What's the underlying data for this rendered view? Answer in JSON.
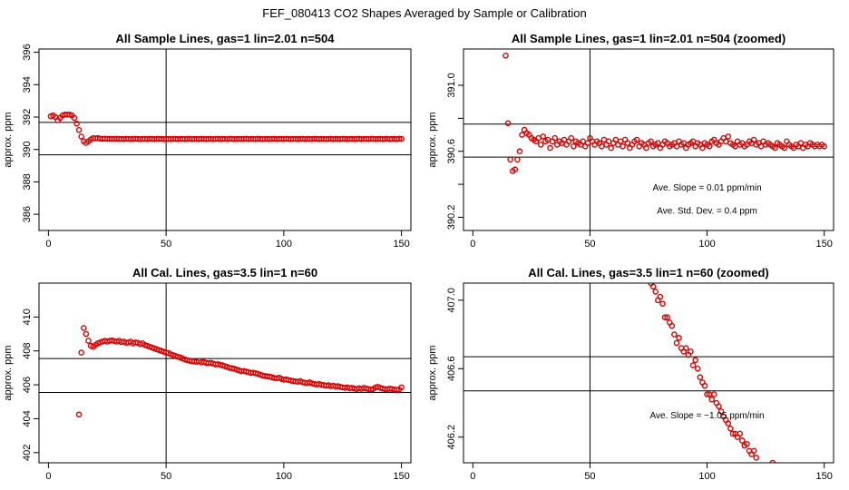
{
  "main_title": "FEF_080413  CO2 Shapes Averaged by Sample or Calibration",
  "colors": {
    "points": "#dd0000",
    "frame": "#000000",
    "lines": "#000000"
  },
  "chart_data": [
    {
      "type": "scatter",
      "title": "All Sample Lines, gas=1 lin=2.01 n=504",
      "xlabel": "",
      "ylabel": "approx. ppm",
      "xlim": [
        -4,
        154
      ],
      "ylim": [
        385,
        396.2
      ],
      "x_ticks": [
        0,
        50,
        100,
        150
      ],
      "x_tick_labels": [
        "0",
        "50",
        "100",
        "150"
      ],
      "y_ticks": [
        386,
        388,
        390,
        392,
        394,
        396
      ],
      "y_tick_labels": [
        "386",
        "388",
        "390",
        "392",
        "394",
        "396"
      ],
      "vline": 50,
      "hlines": [
        391.67,
        389.67
      ],
      "annotations": [],
      "x": [
        1,
        2,
        3,
        4,
        5,
        6,
        7,
        8,
        9,
        10,
        11,
        12,
        13,
        14,
        15,
        16,
        17,
        18,
        19,
        20,
        21,
        22,
        23,
        24,
        25,
        26,
        27,
        28,
        29,
        30,
        31,
        32,
        33,
        34,
        35,
        36,
        37,
        38,
        39,
        40,
        41,
        42,
        43,
        44,
        45,
        46,
        47,
        48,
        49,
        50,
        51,
        52,
        53,
        54,
        55,
        56,
        57,
        58,
        59,
        60,
        61,
        62,
        63,
        64,
        65,
        66,
        67,
        68,
        69,
        70,
        71,
        72,
        73,
        74,
        75,
        76,
        77,
        78,
        79,
        80,
        81,
        82,
        83,
        84,
        85,
        86,
        87,
        88,
        89,
        90,
        91,
        92,
        93,
        94,
        95,
        96,
        97,
        98,
        99,
        100,
        101,
        102,
        103,
        104,
        105,
        106,
        107,
        108,
        109,
        110,
        111,
        112,
        113,
        114,
        115,
        116,
        117,
        118,
        119,
        120,
        121,
        122,
        123,
        124,
        125,
        126,
        127,
        128,
        129,
        130,
        131,
        132,
        133,
        134,
        135,
        136,
        137,
        138,
        139,
        140,
        141,
        142,
        143,
        144,
        145,
        146,
        147,
        148,
        149,
        150
      ],
      "y": [
        392.05,
        392.1,
        392.0,
        391.8,
        391.95,
        392.1,
        392.15,
        392.15,
        392.15,
        392.1,
        391.95,
        391.6,
        391.2,
        390.8,
        390.5,
        390.4,
        390.5,
        390.62,
        390.7,
        390.68,
        390.7,
        390.67,
        390.66,
        390.67,
        390.65,
        390.66,
        390.65,
        390.65,
        390.66,
        390.65,
        390.65,
        390.64,
        390.66,
        390.65,
        390.64,
        390.65,
        390.66,
        390.65,
        390.64,
        390.65,
        390.65,
        390.64,
        390.66,
        390.65,
        390.64,
        390.66,
        390.65,
        390.65,
        390.64,
        390.65,
        390.65,
        390.64,
        390.66,
        390.65,
        390.64,
        390.65,
        390.65,
        390.64,
        390.65,
        390.66,
        390.64,
        390.65,
        390.65,
        390.64,
        390.66,
        390.65,
        390.64,
        390.65,
        390.65,
        390.64,
        390.65,
        390.66,
        390.64,
        390.65,
        390.65,
        390.64,
        390.66,
        390.65,
        390.64,
        390.65,
        390.65,
        390.64,
        390.65,
        390.66,
        390.64,
        390.65,
        390.65,
        390.64,
        390.66,
        390.65,
        390.64,
        390.65,
        390.65,
        390.64,
        390.65,
        390.66,
        390.64,
        390.65,
        390.65,
        390.64,
        390.66,
        390.65,
        390.64,
        390.65,
        390.65,
        390.64,
        390.65,
        390.66,
        390.64,
        390.65,
        390.65,
        390.64,
        390.66,
        390.65,
        390.64,
        390.65,
        390.65,
        390.64,
        390.65,
        390.66,
        390.64,
        390.65,
        390.65,
        390.64,
        390.66,
        390.65,
        390.64,
        390.65,
        390.65,
        390.64,
        390.65,
        390.66,
        390.64,
        390.65,
        390.65,
        390.64,
        390.66,
        390.65,
        390.64,
        390.65,
        390.65,
        390.64,
        390.65,
        390.66,
        390.64,
        390.65,
        390.65,
        390.64,
        390.66,
        390.65
      ]
    },
    {
      "type": "scatter",
      "title": "All Sample Lines, gas=1 lin=2.01 n=504 (zoomed)",
      "xlabel": "",
      "ylabel": "approx. ppm",
      "xlim": [
        -4,
        154
      ],
      "ylim": [
        390.12,
        391.22
      ],
      "x_ticks": [
        0,
        50,
        100,
        150
      ],
      "x_tick_labels": [
        "0",
        "50",
        "100",
        "150"
      ],
      "y_ticks": [
        390.2,
        390.4,
        390.6,
        390.8,
        391.0
      ],
      "y_tick_labels": [
        "390.2",
        "",
        "390.6",
        "",
        "391.0"
      ],
      "vline": 50,
      "hlines": [
        390.765,
        390.565
      ],
      "annotations": [
        {
          "text": "Ave. Slope =  0.01  ppm/min",
          "x": 100,
          "y": 390.385
        },
        {
          "text": "Ave. Std. Dev. =  0.4  ppm",
          "x": 100,
          "y": 390.245
        }
      ],
      "x": [
        14,
        15,
        16,
        17,
        18,
        19,
        20,
        21,
        22,
        23,
        24,
        25,
        26,
        27,
        28,
        29,
        30,
        31,
        32,
        33,
        34,
        35,
        36,
        37,
        38,
        39,
        40,
        41,
        42,
        43,
        44,
        45,
        46,
        47,
        48,
        49,
        50,
        51,
        52,
        53,
        54,
        55,
        56,
        57,
        58,
        59,
        60,
        61,
        62,
        63,
        64,
        65,
        66,
        67,
        68,
        69,
        70,
        71,
        72,
        73,
        74,
        75,
        76,
        77,
        78,
        79,
        80,
        81,
        82,
        83,
        84,
        85,
        86,
        87,
        88,
        89,
        90,
        91,
        92,
        93,
        94,
        95,
        96,
        97,
        98,
        99,
        100,
        101,
        102,
        103,
        104,
        105,
        106,
        107,
        108,
        109,
        110,
        111,
        112,
        113,
        114,
        115,
        116,
        117,
        118,
        119,
        120,
        121,
        122,
        123,
        124,
        125,
        126,
        127,
        128,
        129,
        130,
        131,
        132,
        133,
        134,
        135,
        136,
        137,
        138,
        139,
        140,
        141,
        142,
        143,
        144,
        145,
        146,
        147,
        148,
        149,
        150
      ],
      "y": [
        391.18,
        390.77,
        390.55,
        390.48,
        390.49,
        390.55,
        390.6,
        390.7,
        390.73,
        390.71,
        390.7,
        390.68,
        390.67,
        390.66,
        390.68,
        390.64,
        390.69,
        390.66,
        390.67,
        390.62,
        390.66,
        390.68,
        390.64,
        390.66,
        390.65,
        390.67,
        390.64,
        390.66,
        390.68,
        390.63,
        390.66,
        390.65,
        390.64,
        390.66,
        390.63,
        390.65,
        390.68,
        390.66,
        390.64,
        390.66,
        390.65,
        390.63,
        390.67,
        390.64,
        390.66,
        390.62,
        390.65,
        390.67,
        390.64,
        390.66,
        390.63,
        390.67,
        390.65,
        390.62,
        390.64,
        390.66,
        390.67,
        390.63,
        390.65,
        390.64,
        390.62,
        390.65,
        390.66,
        390.63,
        390.64,
        390.65,
        390.62,
        390.64,
        390.66,
        390.65,
        390.63,
        390.64,
        390.65,
        390.63,
        390.66,
        390.64,
        390.65,
        390.62,
        390.64,
        390.65,
        390.66,
        390.63,
        390.65,
        390.64,
        390.62,
        390.65,
        390.64,
        390.63,
        390.66,
        390.67,
        390.65,
        390.64,
        390.66,
        390.68,
        390.66,
        390.69,
        390.65,
        390.64,
        390.63,
        390.66,
        390.64,
        390.65,
        390.63,
        390.64,
        390.66,
        390.65,
        390.67,
        390.64,
        390.65,
        390.63,
        390.66,
        390.64,
        390.65,
        390.64,
        390.63,
        390.62,
        390.65,
        390.64,
        390.63,
        390.62,
        390.66,
        390.64,
        390.63,
        390.62,
        390.64,
        390.63,
        390.65,
        390.62,
        390.64,
        390.63,
        390.65,
        390.64,
        390.63,
        390.64,
        390.63,
        390.64,
        390.63
      ]
    },
    {
      "type": "scatter",
      "title": "All Cal. Lines, gas=3.5 lin=1 n=60",
      "xlabel": "",
      "ylabel": "approx. ppm",
      "xlim": [
        -4,
        154
      ],
      "ylim": [
        401.4,
        412
      ],
      "x_ticks": [
        0,
        50,
        100,
        150
      ],
      "x_tick_labels": [
        "0",
        "50",
        "100",
        "150"
      ],
      "y_ticks": [
        402,
        404,
        406,
        408,
        410
      ],
      "y_tick_labels": [
        "402",
        "404",
        "406",
        "408",
        "410"
      ],
      "vline": 50,
      "hlines": [
        407.55,
        405.55
      ],
      "annotations": [],
      "x": [
        13,
        14,
        15,
        16,
        17,
        18,
        19,
        20,
        21,
        22,
        23,
        24,
        25,
        26,
        27,
        28,
        29,
        30,
        31,
        32,
        33,
        34,
        35,
        36,
        37,
        38,
        39,
        40,
        41,
        42,
        43,
        44,
        45,
        46,
        47,
        48,
        49,
        50,
        51,
        52,
        53,
        54,
        55,
        56,
        57,
        58,
        59,
        60,
        61,
        62,
        63,
        64,
        65,
        66,
        67,
        68,
        69,
        70,
        71,
        72,
        73,
        74,
        75,
        76,
        77,
        78,
        79,
        80,
        81,
        82,
        83,
        84,
        85,
        86,
        87,
        88,
        89,
        90,
        91,
        92,
        93,
        94,
        95,
        96,
        97,
        98,
        99,
        100,
        101,
        102,
        103,
        104,
        105,
        106,
        107,
        108,
        109,
        110,
        111,
        112,
        113,
        114,
        115,
        116,
        117,
        118,
        119,
        120,
        121,
        122,
        123,
        124,
        125,
        126,
        127,
        128,
        129,
        130,
        131,
        132,
        133,
        134,
        135,
        136,
        137,
        138,
        139,
        140,
        141,
        142,
        143,
        144,
        145,
        146,
        147,
        148,
        149,
        150
      ],
      "y": [
        404.25,
        407.9,
        409.35,
        409.0,
        408.6,
        408.3,
        408.25,
        408.35,
        408.45,
        408.5,
        408.55,
        408.6,
        408.55,
        408.6,
        408.62,
        408.58,
        408.55,
        408.6,
        408.52,
        408.55,
        408.48,
        408.5,
        408.55,
        408.45,
        408.5,
        408.48,
        408.4,
        408.45,
        408.35,
        408.3,
        408.25,
        408.2,
        408.15,
        408.1,
        408.05,
        408.0,
        407.95,
        407.9,
        407.88,
        407.8,
        407.75,
        407.7,
        407.65,
        407.62,
        407.55,
        407.5,
        407.45,
        407.42,
        407.4,
        407.38,
        407.35,
        407.4,
        407.32,
        407.35,
        407.3,
        407.28,
        407.3,
        407.25,
        407.2,
        407.22,
        407.18,
        407.15,
        407.1,
        407.05,
        407.0,
        406.98,
        406.95,
        406.9,
        406.85,
        406.8,
        406.82,
        406.78,
        406.75,
        406.7,
        406.72,
        406.68,
        406.65,
        406.6,
        406.55,
        406.52,
        406.5,
        406.48,
        406.45,
        406.4,
        406.38,
        406.42,
        406.35,
        406.3,
        406.32,
        406.28,
        406.25,
        406.22,
        406.2,
        406.18,
        406.22,
        406.15,
        406.12,
        406.1,
        406.15,
        406.08,
        406.05,
        406.02,
        406.05,
        406.0,
        405.98,
        405.95,
        405.98,
        405.92,
        405.95,
        405.9,
        405.92,
        405.88,
        405.85,
        405.82,
        405.85,
        405.8,
        405.82,
        405.78,
        405.75,
        405.8,
        405.76,
        405.82,
        405.78,
        405.75,
        405.72,
        405.75,
        405.85,
        405.88,
        405.82,
        405.78,
        405.75,
        405.72,
        405.78,
        405.75,
        405.72,
        405.7,
        405.72,
        405.85
      ]
    },
    {
      "type": "scatter",
      "title": "All Cal. Lines, gas=3.5 lin=1 n=60 (zoomed)",
      "xlabel": "",
      "ylabel": "approx. ppm",
      "xlim": [
        -4,
        154
      ],
      "ylim": [
        406.05,
        407.1
      ],
      "x_ticks": [
        0,
        50,
        100,
        150
      ],
      "x_tick_labels": [
        "0",
        "50",
        "100",
        "150"
      ],
      "y_ticks": [
        406.2,
        406.6,
        407.0
      ],
      "y_tick_labels": [
        "406.2",
        "406.6",
        "407.0"
      ],
      "vline": 50,
      "hlines": [
        406.67,
        406.47
      ],
      "annotations": [
        {
          "text": "Ave. Slope =  −1.05  ppm/min",
          "x": 100,
          "y": 406.33
        }
      ],
      "x": [
        76,
        77,
        78,
        79,
        80,
        81,
        82,
        83,
        84,
        85,
        86,
        87,
        88,
        89,
        90,
        91,
        92,
        93,
        94,
        95,
        96,
        97,
        98,
        99,
        100,
        101,
        102,
        103,
        104,
        105,
        106,
        107,
        108,
        109,
        110,
        111,
        112,
        113,
        114,
        115,
        116,
        117,
        118,
        119,
        120,
        121,
        128
      ],
      "y": [
        407.1,
        407.08,
        407.05,
        407.0,
        407.02,
        406.98,
        406.9,
        406.9,
        406.87,
        406.85,
        406.8,
        406.75,
        406.78,
        406.72,
        406.7,
        406.72,
        406.68,
        406.7,
        406.62,
        406.65,
        406.6,
        406.55,
        406.52,
        406.5,
        406.45,
        406.45,
        406.42,
        406.45,
        406.4,
        406.38,
        406.35,
        406.32,
        406.3,
        406.28,
        406.25,
        406.22,
        406.22,
        406.2,
        406.22,
        406.18,
        406.15,
        406.16,
        406.12,
        406.1,
        406.12,
        406.08,
        406.05
      ]
    }
  ]
}
